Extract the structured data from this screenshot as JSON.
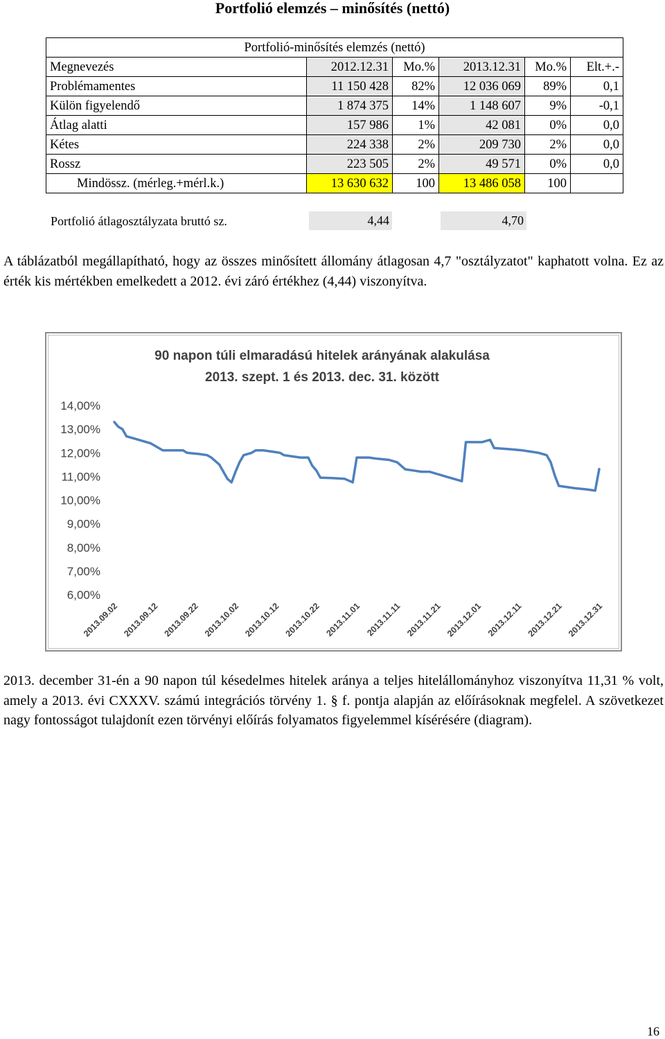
{
  "page": {
    "title": "Portfolió elemzés – minősítés (nettó)",
    "page_number": "16"
  },
  "table": {
    "caption": "Portfolió-minősítés elemzés (nettó)",
    "headers": [
      "Megnevezés",
      "2012.12.31",
      "Mo.%",
      "2013.12.31",
      "Mo.%",
      "Elt.+.-"
    ],
    "rows": [
      [
        "Problémamentes",
        "11 150 428",
        "82%",
        "12 036 069",
        "89%",
        "0,1"
      ],
      [
        "Külön figyelendő",
        "1 874 375",
        "14%",
        "1 148 607",
        "9%",
        "-0,1"
      ],
      [
        "Átlag alatti",
        "157 986",
        "1%",
        "42 081",
        "0%",
        "0,0"
      ],
      [
        "Kétes",
        "224 338",
        "2%",
        "209 730",
        "2%",
        "0,0"
      ],
      [
        "Rossz",
        "223 505",
        "2%",
        "49 571",
        "0%",
        "0,0"
      ]
    ],
    "total": [
      "Mindössz. (mérleg.+mérl.k.)",
      "13 630 632",
      "100",
      "13 486 058",
      "100",
      ""
    ]
  },
  "average": {
    "label": "Portfolió átlagosztályzata bruttó sz.",
    "value_2012": "4,44",
    "value_2013": "4,70"
  },
  "paragraph1": "A táblázatból megállapítható, hogy az összes minősített állomány átlagosan 4,7 \"osztályzatot\" kaphatott volna. Ez az érték kis mértékben emelkedett a 2012. évi záró értékhez (4,44) viszonyítva.",
  "paragraph2": "2013. december 31-én a 90 napon túl késedelmes hitelek aránya a teljes hitelállományhoz viszonyítva 11,31 % volt, amely a 2013. évi CXXXV. számú integrációs törvény 1. § f. pontja alapján az előírásoknak megfelel. A szövetkezet nagy fontosságot tulajdonít ezen törvényi előírás folyamatos figyelemmel kísérésére (diagram).",
  "chart_data": {
    "type": "line",
    "title": "90 napon túli elmaradású hitelek arányának alakulása",
    "subtitle": "2013. szept. 1 és 2013. dec. 31. között",
    "xlabel": "",
    "ylabel": "",
    "ylim": [
      6,
      14
    ],
    "y_ticks": [
      "14,00%",
      "13,00%",
      "12,00%",
      "11,00%",
      "10,00%",
      "9,00%",
      "8,00%",
      "7,00%",
      "6,00%"
    ],
    "x_ticks": [
      "2013.09.02",
      "2013.09.12",
      "2013.09.22",
      "2013.10.02",
      "2013.10.12",
      "2013.10.22",
      "2013.11.01",
      "2013.11.11",
      "2013.11.21",
      "2013.12.01",
      "2013.12.11",
      "2013.12.21",
      "2013.12.31"
    ],
    "x_range": [
      "2013.09.02",
      "2013.12.31"
    ],
    "grid": false,
    "legend": "none",
    "line_color": "#4f81bd",
    "series": [
      {
        "points": [
          [
            "2013.09.02",
            13.3
          ],
          [
            "2013.09.03",
            13.1
          ],
          [
            "2013.09.04",
            13.0
          ],
          [
            "2013.09.05",
            12.7
          ],
          [
            "2013.09.07",
            12.6
          ],
          [
            "2013.09.09",
            12.5
          ],
          [
            "2013.09.11",
            12.4
          ],
          [
            "2013.09.13",
            12.2
          ],
          [
            "2013.09.14",
            12.1
          ],
          [
            "2013.09.19",
            12.1
          ],
          [
            "2013.09.20",
            12.0
          ],
          [
            "2013.09.23",
            11.95
          ],
          [
            "2013.09.25",
            11.9
          ],
          [
            "2013.09.26",
            11.8
          ],
          [
            "2013.09.28",
            11.5
          ],
          [
            "2013.09.29",
            11.2
          ],
          [
            "2013.09.30",
            10.9
          ],
          [
            "2013.10.01",
            10.75
          ],
          [
            "2013.10.02",
            11.2
          ],
          [
            "2013.10.03",
            11.6
          ],
          [
            "2013.10.04",
            11.9
          ],
          [
            "2013.10.06",
            12.0
          ],
          [
            "2013.10.07",
            12.1
          ],
          [
            "2013.10.09",
            12.1
          ],
          [
            "2013.10.11",
            12.05
          ],
          [
            "2013.10.13",
            12.0
          ],
          [
            "2013.10.14",
            11.9
          ],
          [
            "2013.10.16",
            11.85
          ],
          [
            "2013.10.18",
            11.8
          ],
          [
            "2013.10.20",
            11.8
          ],
          [
            "2013.10.21",
            11.45
          ],
          [
            "2013.10.22",
            11.25
          ],
          [
            "2013.10.23",
            10.95
          ],
          [
            "2013.10.26",
            10.93
          ],
          [
            "2013.10.29",
            10.9
          ],
          [
            "2013.10.31",
            10.75
          ],
          [
            "2013.11.01",
            11.8
          ],
          [
            "2013.11.04",
            11.8
          ],
          [
            "2013.11.06",
            11.75
          ],
          [
            "2013.11.09",
            11.7
          ],
          [
            "2013.11.11",
            11.6
          ],
          [
            "2013.11.13",
            11.3
          ],
          [
            "2013.11.15",
            11.25
          ],
          [
            "2013.11.17",
            11.2
          ],
          [
            "2013.11.19",
            11.2
          ],
          [
            "2013.11.21",
            11.1
          ],
          [
            "2013.11.23",
            11.0
          ],
          [
            "2013.11.25",
            10.9
          ],
          [
            "2013.11.27",
            10.8
          ],
          [
            "2013.11.28",
            12.45
          ],
          [
            "2013.12.02",
            12.45
          ],
          [
            "2013.12.04",
            12.55
          ],
          [
            "2013.12.05",
            12.2
          ],
          [
            "2013.12.09",
            12.15
          ],
          [
            "2013.12.12",
            12.1
          ],
          [
            "2013.12.14",
            12.05
          ],
          [
            "2013.12.16",
            12.0
          ],
          [
            "2013.12.18",
            11.9
          ],
          [
            "2013.12.19",
            11.6
          ],
          [
            "2013.12.20",
            11.05
          ],
          [
            "2013.12.21",
            10.6
          ],
          [
            "2013.12.25",
            10.5
          ],
          [
            "2013.12.28",
            10.45
          ],
          [
            "2013.12.30",
            10.4
          ],
          [
            "2013.12.31",
            11.31
          ]
        ]
      }
    ]
  }
}
